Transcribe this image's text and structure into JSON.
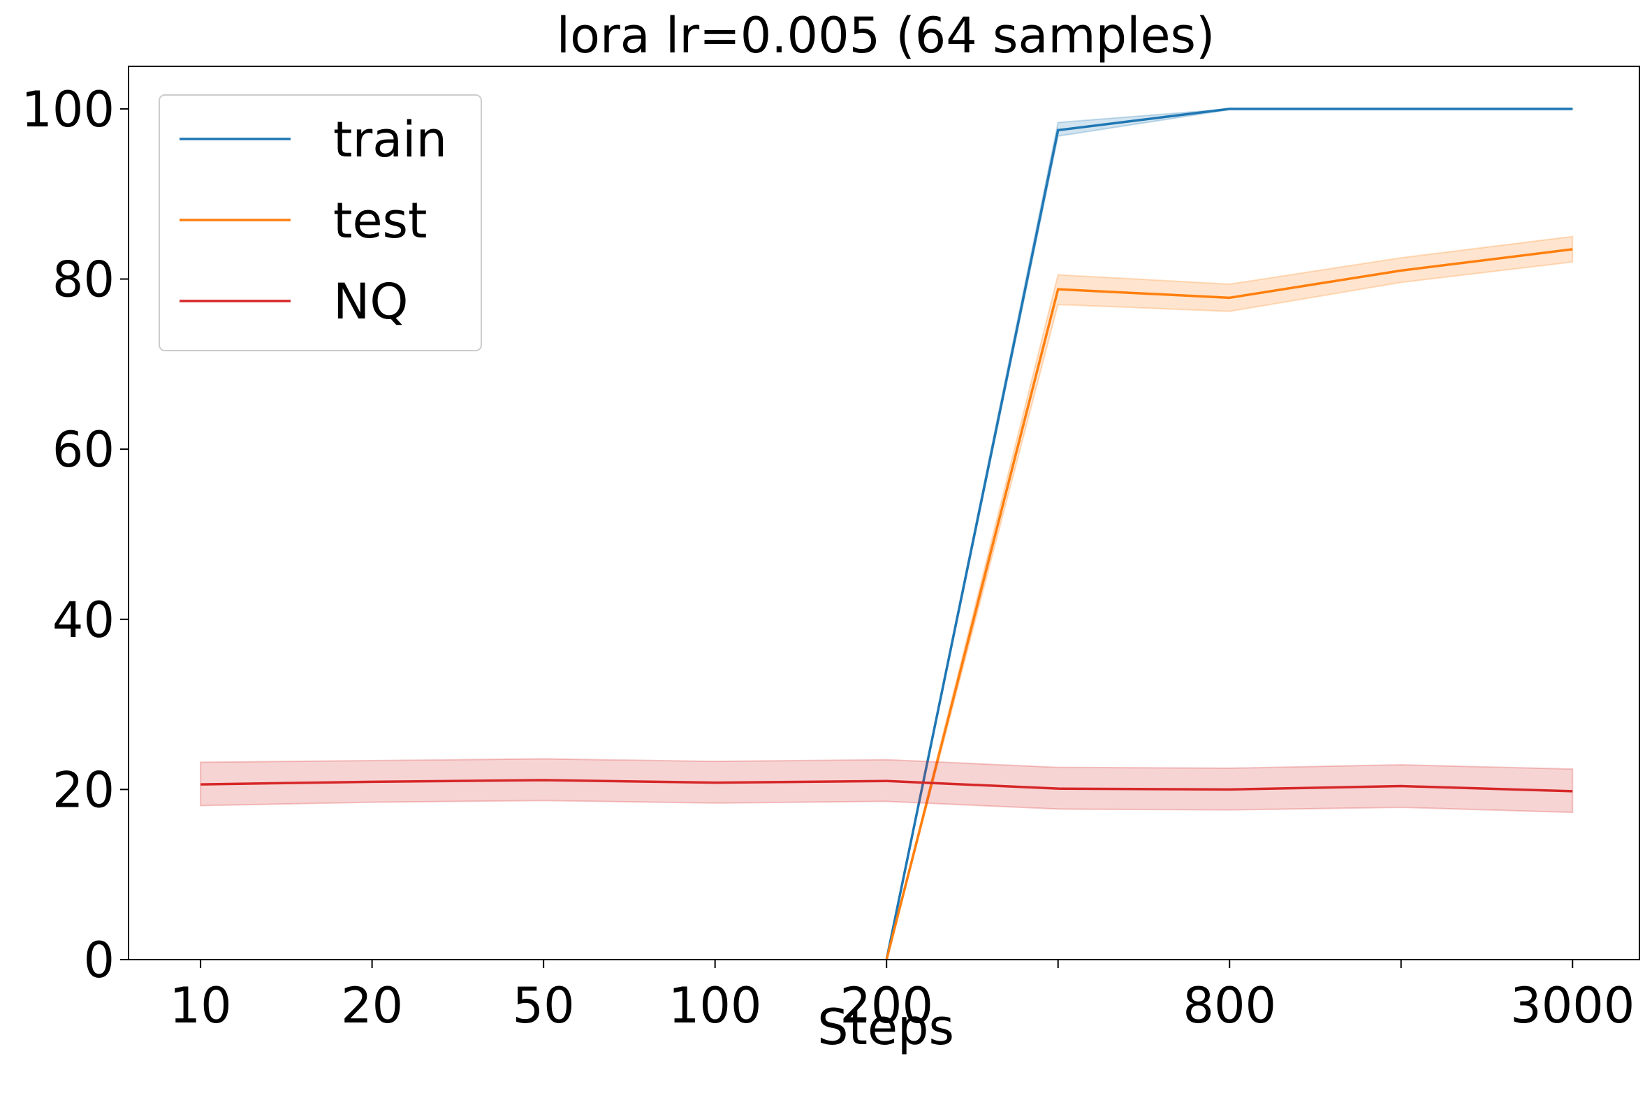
{
  "chart_data": {
    "type": "line",
    "title": "lora lr=0.005  (64 samples)",
    "x_label": "Steps",
    "categories": [
      "10",
      "20",
      "50",
      "100",
      "200",
      null,
      "800",
      null,
      "3000"
    ],
    "ylim": [
      0,
      105
    ],
    "yticks": [
      0,
      20,
      40,
      60,
      80,
      100
    ],
    "legend": "upper left",
    "series": [
      {
        "name": "train",
        "color": "#1f77b4",
        "values": [
          null,
          null,
          null,
          null,
          0,
          97.5,
          100,
          100,
          100
        ],
        "lower": [
          null,
          null,
          null,
          null,
          0,
          96.8,
          99.9,
          99.9,
          99.9
        ],
        "upper": [
          null,
          null,
          null,
          null,
          0,
          98.4,
          100,
          100,
          100
        ]
      },
      {
        "name": "test",
        "color": "#ff7f0e",
        "values": [
          null,
          null,
          null,
          null,
          0,
          78.8,
          77.8,
          81,
          83.5
        ],
        "lower": [
          null,
          null,
          null,
          null,
          0,
          77,
          76.2,
          79.6,
          82
        ],
        "upper": [
          null,
          null,
          null,
          null,
          0,
          80.5,
          79.4,
          82.5,
          85
        ]
      },
      {
        "name": "NQ",
        "color": "#d62728",
        "values": [
          20.6,
          20.9,
          21.1,
          20.8,
          21.0,
          20.1,
          20.0,
          20.4,
          19.8
        ],
        "lower": [
          18.1,
          18.5,
          18.7,
          18.4,
          18.6,
          17.7,
          17.6,
          17.9,
          17.3
        ],
        "upper": [
          23.2,
          23.4,
          23.6,
          23.3,
          23.5,
          22.6,
          22.5,
          22.9,
          22.4
        ]
      }
    ]
  }
}
